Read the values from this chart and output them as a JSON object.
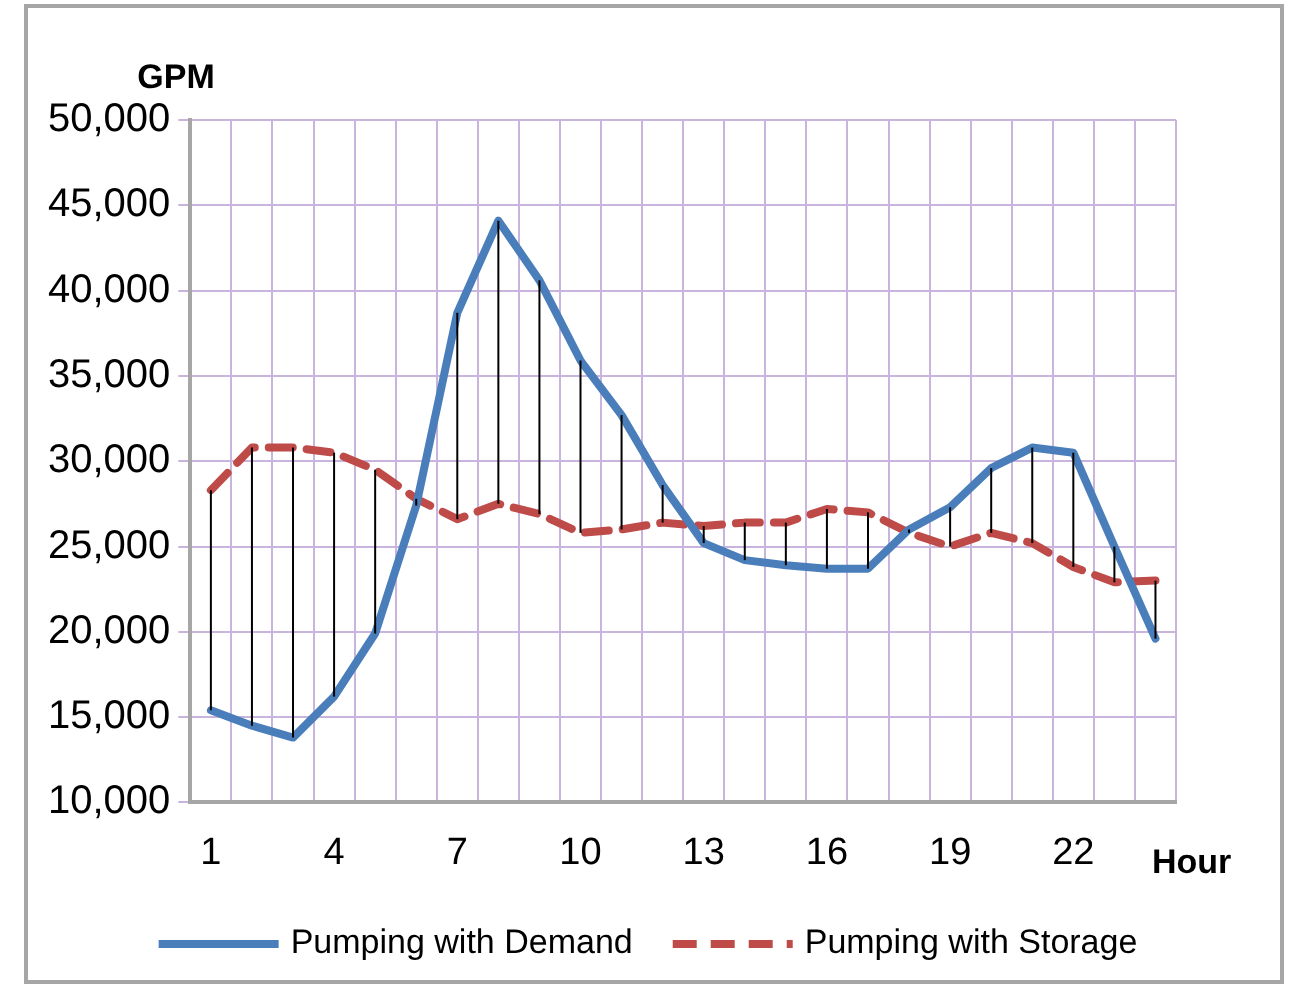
{
  "chart_data": {
    "type": "line",
    "ylabel": "GPM",
    "xlabel": "Hour",
    "categories": [
      "1",
      null,
      null,
      "4",
      null,
      null,
      "7",
      null,
      null,
      "10",
      null,
      null,
      "13",
      null,
      null,
      "16",
      null,
      null,
      "19",
      null,
      null,
      "22",
      null,
      null
    ],
    "ylim": [
      10000,
      50000
    ],
    "yticks": [
      {
        "value": 10000,
        "label": "10,000"
      },
      {
        "value": 15000,
        "label": "15,000"
      },
      {
        "value": 20000,
        "label": "20,000"
      },
      {
        "value": 25000,
        "label": "25,000"
      },
      {
        "value": 30000,
        "label": "30,000"
      },
      {
        "value": 35000,
        "label": "35,000"
      },
      {
        "value": 40000,
        "label": "40,000"
      },
      {
        "value": 45000,
        "label": "45,000"
      },
      {
        "value": 50000,
        "label": "50,000"
      }
    ],
    "grid": true,
    "legend": "bottom",
    "marker": "none",
    "series": [
      {
        "name": "Pumping with Demand",
        "color": "#4a7ebb",
        "line_style": "solid",
        "values": [
          15400,
          14500,
          13800,
          16200,
          19900,
          27400,
          38700,
          44100,
          40600,
          35900,
          32700,
          28600,
          25200,
          24200,
          23900,
          23700,
          23700,
          26000,
          27300,
          29600,
          30800,
          30500,
          25000,
          19600
        ],
        "errors": [
          [
            15400,
            28300
          ],
          [
            14500,
            30800
          ],
          [
            13800,
            30800
          ],
          [
            16200,
            30500
          ],
          [
            19900,
            29500
          ],
          [
            27400,
            27800
          ],
          [
            26600,
            38700
          ],
          [
            27500,
            44100
          ],
          [
            26900,
            40600
          ],
          [
            25800,
            35900
          ],
          [
            26000,
            32700
          ],
          [
            26400,
            28600
          ],
          [
            25200,
            26200
          ],
          [
            24200,
            26400
          ],
          [
            23900,
            26400
          ],
          [
            23700,
            27200
          ],
          [
            23700,
            27000
          ],
          [
            25800,
            26000
          ],
          [
            25000,
            27300
          ],
          [
            25800,
            29600
          ],
          [
            25200,
            30800
          ],
          [
            23800,
            30500
          ],
          [
            22900,
            25000
          ],
          [
            19600,
            23000
          ]
        ]
      },
      {
        "name": "Pumping with Storage",
        "color": "#be4b48",
        "line_style": "dashed",
        "values": [
          28300,
          30800,
          30800,
          30500,
          29500,
          27800,
          26600,
          27500,
          26900,
          25800,
          26000,
          26400,
          26200,
          26400,
          26400,
          27200,
          27000,
          25800,
          25000,
          25800,
          25200,
          23800,
          22900,
          23000
        ]
      }
    ]
  }
}
